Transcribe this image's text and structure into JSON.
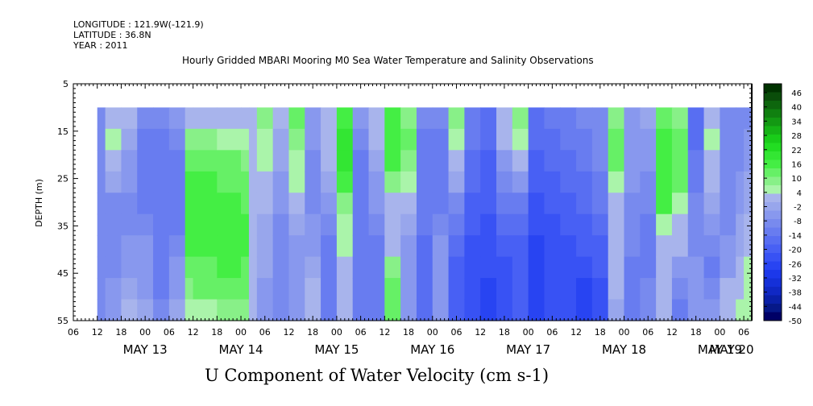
{
  "header": {
    "longitude": "LONGITUDE : 121.9W(-121.9)",
    "latitude": "LATITUDE : 36.8N",
    "year": "YEAR : 2011"
  },
  "title": "Hourly Gridded MBARI Mooring M0 Sea Water Temperature and Salinity Observations",
  "bottom_title": "U Component of Water Velocity (cm s-1)",
  "chart_data": {
    "type": "heatmap",
    "title": "Hourly Gridded MBARI Mooring M0 Sea Water Temperature and Salinity Observations",
    "variable": "U Component of Water Velocity (cm s-1)",
    "ylabel": "DEPTH (m)",
    "ylim": [
      5,
      55
    ],
    "y_inverted": true,
    "y_ticks": [
      5,
      15,
      25,
      35,
      45,
      55
    ],
    "data_depth_range": [
      10,
      55
    ],
    "x_range_hours": [
      6,
      176
    ],
    "x_hour_ticks": [
      "06",
      "12",
      "18",
      "00",
      "06",
      "12",
      "18",
      "00",
      "06",
      "12",
      "18",
      "00",
      "06",
      "12",
      "18",
      "00",
      "06",
      "12",
      "18",
      "00",
      "06",
      "12",
      "18",
      "00",
      "06",
      "12",
      "18",
      "00",
      "06"
    ],
    "x_day_labels": [
      "MAY 13",
      "MAY 14",
      "MAY 15",
      "MAY 16",
      "MAY 17",
      "MAY 18",
      "MAY 19",
      "MAY 20"
    ],
    "colorbar": {
      "labels": [
        "46",
        "40",
        "34",
        "28",
        "22",
        "16",
        "10",
        "4",
        "-2",
        "-8",
        "-14",
        "-20",
        "-26",
        "-32",
        "-38",
        "-44",
        "-50"
      ],
      "colors": [
        "#003300",
        "#0a4d0a",
        "#0d660d",
        "#108010",
        "#139913",
        "#16b316",
        "#19cc19",
        "#22dd22",
        "#33e633",
        "#44ee44",
        "#66f066",
        "#88f088",
        "#aaf4aa",
        "#a8b4ec",
        "#98a6ec",
        "#8898ee",
        "#788aee",
        "#687cf0",
        "#586ef2",
        "#4860f4",
        "#3852f4",
        "#2844f2",
        "#1c38ea",
        "#1530d8",
        "#1028c4",
        "#0a20a8",
        "#061888",
        "#000066"
      ]
    },
    "profiles": [
      {
        "x": 12,
        "u": [
          -8,
          -8,
          -8,
          -8,
          -8,
          -8,
          -8,
          -8,
          -8,
          -8
        ]
      },
      {
        "x": 14,
        "u": [
          4,
          6,
          4,
          -2,
          -8,
          -8,
          -8,
          -8,
          -6,
          -6
        ]
      },
      {
        "x": 18,
        "u": [
          4,
          0,
          -4,
          -6,
          -8,
          -8,
          -6,
          -4,
          0,
          4
        ]
      },
      {
        "x": 22,
        "u": [
          -8,
          -10,
          -10,
          -10,
          -10,
          -8,
          -6,
          -6,
          -4,
          -2
        ]
      },
      {
        "x": 26,
        "u": [
          -8,
          -10,
          -12,
          -12,
          -12,
          -12,
          -10,
          -10,
          -10,
          -8
        ]
      },
      {
        "x": 30,
        "u": [
          -6,
          -8,
          -10,
          -10,
          -10,
          -10,
          -8,
          -6,
          -4,
          -2
        ]
      },
      {
        "x": 34,
        "u": [
          4,
          10,
          14,
          16,
          18,
          18,
          16,
          14,
          10,
          6
        ]
      },
      {
        "x": 36,
        "u": [
          4,
          10,
          14,
          16,
          18,
          18,
          16,
          14,
          12,
          8
        ]
      },
      {
        "x": 42,
        "u": [
          4,
          8,
          12,
          14,
          16,
          18,
          18,
          16,
          14,
          10
        ]
      },
      {
        "x": 48,
        "u": [
          4,
          6,
          10,
          12,
          14,
          16,
          16,
          14,
          12,
          10
        ]
      },
      {
        "x": 50,
        "u": [
          2,
          2,
          2,
          2,
          2,
          2,
          2,
          2,
          2,
          2
        ]
      },
      {
        "x": 52,
        "u": [
          10,
          8,
          6,
          4,
          2,
          0,
          -2,
          -2,
          -4,
          -4
        ]
      },
      {
        "x": 56,
        "u": [
          4,
          0,
          -2,
          -4,
          -6,
          -8,
          -8,
          -8,
          -8,
          -8
        ]
      },
      {
        "x": 60,
        "u": [
          12,
          10,
          8,
          6,
          2,
          -2,
          -4,
          -4,
          -4,
          -4
        ]
      },
      {
        "x": 64,
        "u": [
          -4,
          -6,
          -8,
          -8,
          -8,
          -6,
          -4,
          -2,
          2,
          4
        ]
      },
      {
        "x": 68,
        "u": [
          4,
          4,
          2,
          -2,
          -4,
          -8,
          -10,
          -10,
          -10,
          -10
        ]
      },
      {
        "x": 72,
        "u": [
          16,
          22,
          22,
          16,
          10,
          6,
          6,
          4,
          4,
          4
        ]
      },
      {
        "x": 76,
        "u": [
          -6,
          -8,
          -10,
          -10,
          -10,
          -12,
          -12,
          -12,
          -12,
          -12
        ]
      },
      {
        "x": 80,
        "u": [
          4,
          2,
          -2,
          -4,
          -6,
          -8,
          -10,
          -10,
          -10,
          -10
        ]
      },
      {
        "x": 84,
        "u": [
          16,
          18,
          16,
          10,
          4,
          2,
          4,
          10,
          12,
          14
        ]
      },
      {
        "x": 88,
        "u": [
          10,
          12,
          10,
          6,
          2,
          -2,
          -4,
          -6,
          -6,
          -6
        ]
      },
      {
        "x": 92,
        "u": [
          -8,
          -10,
          -10,
          -12,
          -12,
          -12,
          -14,
          -14,
          -14,
          -14
        ]
      },
      {
        "x": 96,
        "u": [
          -8,
          -10,
          -12,
          -12,
          -10,
          -8,
          -6,
          -4,
          -4,
          -4
        ]
      },
      {
        "x": 100,
        "u": [
          10,
          8,
          4,
          -2,
          -8,
          -12,
          -16,
          -18,
          -20,
          -20
        ]
      },
      {
        "x": 104,
        "u": [
          -10,
          -12,
          -14,
          -16,
          -18,
          -20,
          -22,
          -24,
          -24,
          -24
        ]
      },
      {
        "x": 108,
        "u": [
          -14,
          -16,
          -18,
          -20,
          -20,
          -22,
          -24,
          -24,
          -26,
          -26
        ]
      },
      {
        "x": 112,
        "u": [
          4,
          2,
          -4,
          -8,
          -12,
          -16,
          -20,
          -22,
          -22,
          -22
        ]
      },
      {
        "x": 116,
        "u": [
          10,
          8,
          4,
          -4,
          -10,
          -14,
          -18,
          -20,
          -20,
          -20
        ]
      },
      {
        "x": 120,
        "u": [
          -14,
          -16,
          -18,
          -20,
          -22,
          -24,
          -26,
          -26,
          -28,
          -28
        ]
      },
      {
        "x": 124,
        "u": [
          -12,
          -14,
          -16,
          -18,
          -20,
          -22,
          -24,
          -24,
          -24,
          -24
        ]
      },
      {
        "x": 128,
        "u": [
          -10,
          -12,
          -14,
          -16,
          -18,
          -20,
          -22,
          -24,
          -24,
          -24
        ]
      },
      {
        "x": 132,
        "u": [
          -8,
          -10,
          -12,
          -14,
          -16,
          -18,
          -20,
          -22,
          -26,
          -28
        ]
      },
      {
        "x": 136,
        "u": [
          -8,
          -8,
          -8,
          -10,
          -12,
          -14,
          -18,
          -20,
          -22,
          -24
        ]
      },
      {
        "x": 140,
        "u": [
          10,
          14,
          12,
          8,
          4,
          2,
          4,
          4,
          2,
          -2
        ]
      },
      {
        "x": 144,
        "u": [
          -6,
          -4,
          -4,
          -6,
          -8,
          -8,
          -8,
          -10,
          -12,
          -12
        ]
      },
      {
        "x": 148,
        "u": [
          -2,
          -4,
          -6,
          -8,
          -8,
          -10,
          -10,
          -10,
          -8,
          -8
        ]
      },
      {
        "x": 152,
        "u": [
          14,
          16,
          18,
          18,
          16,
          8,
          4,
          2,
          4,
          4
        ]
      },
      {
        "x": 156,
        "u": [
          10,
          12,
          14,
          12,
          8,
          4,
          2,
          -4,
          -8,
          -10
        ]
      },
      {
        "x": 160,
        "u": [
          -14,
          -14,
          -12,
          -10,
          -8,
          -8,
          -8,
          -6,
          -4,
          -4
        ]
      },
      {
        "x": 164,
        "u": [
          4,
          6,
          4,
          2,
          -2,
          -6,
          -8,
          -10,
          -8,
          -4
        ]
      },
      {
        "x": 168,
        "u": [
          -8,
          -8,
          -8,
          -8,
          -8,
          -8,
          -6,
          -4,
          2,
          4
        ]
      },
      {
        "x": 172,
        "u": [
          -8,
          -8,
          -8,
          -6,
          -4,
          -2,
          -2,
          2,
          4,
          8
        ]
      },
      {
        "x": 174,
        "u": [
          -8,
          -6,
          -4,
          -2,
          -2,
          2,
          4,
          6,
          8,
          8
        ]
      }
    ]
  }
}
